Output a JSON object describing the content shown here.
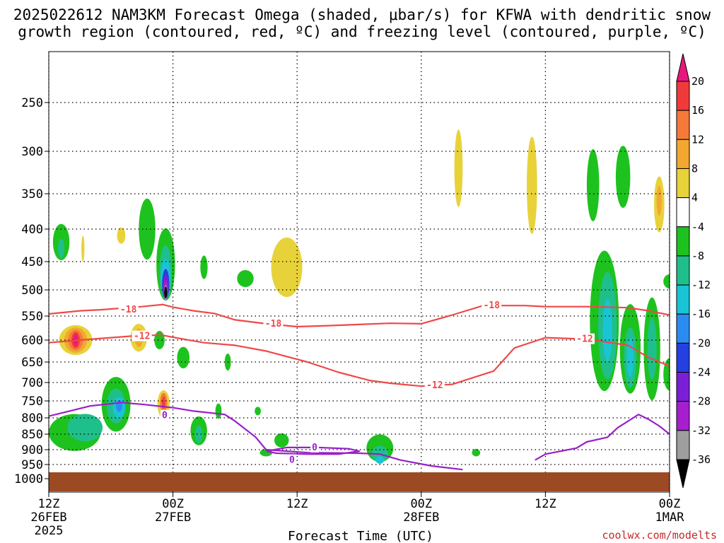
{
  "chart_data": {
    "type": "heatmap",
    "title_line1": "2025022612 NAM3KM Forecast Omega (shaded, μbar/s) for KFWA with dendritic snow",
    "title_line2": "growth region (contoured, red, ºC) and freezing level (contoured, purple, ºC)",
    "xlabel": "Forecast Time (UTC)",
    "credit": "coolwx.com/modelts",
    "x_ticks": [
      {
        "line1": "12Z",
        "line2": "26FEB",
        "line3": "2025",
        "hour": 0
      },
      {
        "line1": "00Z",
        "line2": "27FEB",
        "line3": "",
        "hour": 12
      },
      {
        "line1": "12Z",
        "line2": "",
        "line3": "",
        "hour": 24
      },
      {
        "line1": "00Z",
        "line2": "28FEB",
        "line3": "",
        "hour": 36
      },
      {
        "line1": "12Z",
        "line2": "",
        "line3": "",
        "hour": 48
      },
      {
        "line1": "00Z",
        "line2": "1MAR",
        "line3": "",
        "hour": 60
      }
    ],
    "y_ticks": [
      "250",
      "300",
      "350",
      "400",
      "450",
      "500",
      "550",
      "600",
      "650",
      "700",
      "750",
      "800",
      "850",
      "900",
      "950",
      "1000"
    ],
    "y_levels": [
      250,
      300,
      350,
      400,
      450,
      500,
      550,
      600,
      650,
      700,
      750,
      800,
      850,
      900,
      950,
      1000
    ],
    "colorbar": {
      "labels": [
        "20",
        "16",
        "12",
        "8",
        "4",
        "-4",
        "-8",
        "-12",
        "-16",
        "-20",
        "-24",
        "-28",
        "-32",
        "-36"
      ],
      "colors": [
        "#e8177e",
        "#f03a3a",
        "#f57a3a",
        "#f2a830",
        "#e8d23a",
        "#ffffff",
        "#1ec21e",
        "#1fbf8c",
        "#19c4d4",
        "#2a8cf0",
        "#2440e0",
        "#7a1fd6",
        "#a51fcf",
        "#9e9e9e",
        "#000000"
      ]
    },
    "contour_labels": {
      "dgz_cold": "-18",
      "dgz_warm": "-12",
      "freezing": "0"
    },
    "series": [
      {
        "name": "-18",
        "color": "#f04848",
        "points": [
          [
            0,
            546
          ],
          [
            3,
            540
          ],
          [
            5,
            538
          ],
          [
            9,
            532
          ],
          [
            11,
            528
          ],
          [
            12,
            533
          ],
          [
            14,
            540
          ],
          [
            16,
            545
          ],
          [
            18,
            558
          ],
          [
            21,
            566
          ],
          [
            24,
            572
          ],
          [
            27,
            570
          ],
          [
            33,
            565
          ],
          [
            36,
            566
          ],
          [
            39,
            548
          ],
          [
            42,
            530
          ],
          [
            46,
            530
          ],
          [
            48,
            532
          ],
          [
            52,
            532
          ],
          [
            56,
            534
          ],
          [
            58,
            540
          ],
          [
            60,
            548
          ]
        ]
      },
      {
        "name": "-12",
        "color": "#f04848",
        "points": [
          [
            0,
            606
          ],
          [
            3,
            600
          ],
          [
            6,
            595
          ],
          [
            9,
            590
          ],
          [
            11,
            590
          ],
          [
            13,
            598
          ],
          [
            15,
            606
          ],
          [
            18,
            612
          ],
          [
            21,
            625
          ],
          [
            25,
            650
          ],
          [
            28,
            675
          ],
          [
            31,
            695
          ],
          [
            33,
            702
          ],
          [
            36,
            710
          ],
          [
            39,
            705
          ],
          [
            43,
            672
          ],
          [
            45,
            618
          ],
          [
            48,
            595
          ],
          [
            52,
            598
          ],
          [
            56,
            612
          ],
          [
            58,
            640
          ],
          [
            60,
            660
          ]
        ]
      },
      {
        "name": "0",
        "color": "#9a20c8",
        "points": [
          [
            0,
            795
          ],
          [
            2,
            780
          ],
          [
            4,
            765
          ],
          [
            7,
            755
          ],
          [
            9,
            760
          ],
          [
            12,
            770
          ],
          [
            14,
            780
          ],
          [
            17,
            790
          ],
          [
            18,
            810
          ],
          [
            20,
            860
          ],
          [
            21,
            900
          ],
          [
            25,
            910
          ],
          [
            30,
            912
          ],
          [
            32,
            915
          ],
          [
            34,
            935
          ],
          [
            37,
            955
          ],
          [
            40,
            968
          ]
        ]
      },
      {
        "name": "0-loop",
        "color": "#9a20c8",
        "points": [
          [
            21,
            905
          ],
          [
            23,
            893
          ],
          [
            26,
            893
          ],
          [
            29,
            897
          ],
          [
            30,
            905
          ],
          [
            28,
            915
          ],
          [
            25,
            915
          ],
          [
            22,
            912
          ],
          [
            21,
            905
          ]
        ]
      },
      {
        "name": "0-east",
        "color": "#9a20c8",
        "points": [
          [
            47,
            935
          ],
          [
            48,
            915
          ],
          [
            51,
            895
          ],
          [
            52,
            875
          ],
          [
            54,
            860
          ],
          [
            55,
            830
          ],
          [
            56,
            810
          ],
          [
            57,
            790
          ],
          [
            58,
            805
          ],
          [
            59,
            825
          ],
          [
            60,
            850
          ]
        ]
      }
    ],
    "shaded_blobs": [
      {
        "h": 1.2,
        "p": 420,
        "rx": 0.8,
        "ry": 55,
        "c": "#1ec21e"
      },
      {
        "h": 1.2,
        "p": 430,
        "rx": 0.3,
        "ry": 30,
        "c": "#1fbf8c"
      },
      {
        "h": 3.3,
        "p": 430,
        "rx": 0.15,
        "ry": 40,
        "c": "#e8d23a"
      },
      {
        "h": 7.0,
        "p": 410,
        "rx": 0.4,
        "ry": 25,
        "c": "#e8d23a"
      },
      {
        "h": 9.5,
        "p": 400,
        "rx": 0.8,
        "ry": 90,
        "c": "#1ec21e"
      },
      {
        "h": 11.3,
        "p": 455,
        "rx": 0.9,
        "ry": 120,
        "c": "#1ec21e"
      },
      {
        "h": 11.3,
        "p": 470,
        "rx": 0.6,
        "ry": 95,
        "c": "#1fbf8c"
      },
      {
        "h": 11.3,
        "p": 480,
        "rx": 0.45,
        "ry": 70,
        "c": "#19c4d4"
      },
      {
        "h": 11.3,
        "p": 490,
        "rx": 0.35,
        "ry": 55,
        "c": "#2440e0"
      },
      {
        "h": 11.3,
        "p": 495,
        "rx": 0.28,
        "ry": 45,
        "c": "#7a1fd6"
      },
      {
        "h": 11.3,
        "p": 500,
        "rx": 0.2,
        "ry": 35,
        "c": "#a51fcf"
      },
      {
        "h": 11.3,
        "p": 505,
        "rx": 0.14,
        "ry": 28,
        "c": "#9e9e9e"
      },
      {
        "h": 11.3,
        "p": 505,
        "rx": 0.09,
        "ry": 22,
        "c": "#000000"
      },
      {
        "h": 15.0,
        "p": 460,
        "rx": 0.35,
        "ry": 40,
        "c": "#1ec21e"
      },
      {
        "h": 19.0,
        "p": 480,
        "rx": 0.8,
        "ry": 30,
        "c": "#1ec21e"
      },
      {
        "h": 23.0,
        "p": 460,
        "rx": 1.5,
        "ry": 100,
        "c": "#e8d23a"
      },
      {
        "h": 2.6,
        "p": 600,
        "rx": 1.6,
        "ry": 65,
        "c": "#e8d23a"
      },
      {
        "h": 2.6,
        "p": 600,
        "rx": 1.1,
        "ry": 55,
        "c": "#f2a830"
      },
      {
        "h": 2.6,
        "p": 600,
        "rx": 0.7,
        "ry": 45,
        "c": "#f57a3a"
      },
      {
        "h": 2.6,
        "p": 600,
        "rx": 0.4,
        "ry": 35,
        "c": "#f03a3a"
      },
      {
        "h": 2.6,
        "p": 600,
        "rx": 0.2,
        "ry": 25,
        "c": "#e8177e"
      },
      {
        "h": 8.7,
        "p": 595,
        "rx": 0.8,
        "ry": 60,
        "c": "#e8d23a"
      },
      {
        "h": 8.7,
        "p": 595,
        "rx": 0.4,
        "ry": 40,
        "c": "#f2a830"
      },
      {
        "h": 10.7,
        "p": 600,
        "rx": 0.5,
        "ry": 40,
        "c": "#1ec21e"
      },
      {
        "h": 13.0,
        "p": 640,
        "rx": 0.6,
        "ry": 50,
        "c": "#1ec21e"
      },
      {
        "h": 17.3,
        "p": 650,
        "rx": 0.3,
        "ry": 40,
        "c": "#1ec21e"
      },
      {
        "h": 2.5,
        "p": 845,
        "rx": 2.5,
        "ry": 115,
        "c": "#1ec21e"
      },
      {
        "h": 3.5,
        "p": 830,
        "rx": 1.7,
        "ry": 85,
        "c": "#1fbf8c"
      },
      {
        "h": 6.5,
        "p": 760,
        "rx": 1.4,
        "ry": 155,
        "c": "#1ec21e"
      },
      {
        "h": 6.5,
        "p": 765,
        "rx": 0.9,
        "ry": 100,
        "c": "#1fbf8c"
      },
      {
        "h": 6.8,
        "p": 770,
        "rx": 0.6,
        "ry": 60,
        "c": "#19c4d4"
      },
      {
        "h": 6.8,
        "p": 765,
        "rx": 0.3,
        "ry": 35,
        "c": "#2a8cf0"
      },
      {
        "h": 11.1,
        "p": 760,
        "rx": 0.6,
        "ry": 80,
        "c": "#e8d23a"
      },
      {
        "h": 11.1,
        "p": 755,
        "rx": 0.35,
        "ry": 55,
        "c": "#f57a3a"
      },
      {
        "h": 11.1,
        "p": 755,
        "rx": 0.15,
        "ry": 35,
        "c": "#f03a3a"
      },
      {
        "h": 14.5,
        "p": 840,
        "rx": 0.8,
        "ry": 90,
        "c": "#1ec21e"
      },
      {
        "h": 14.5,
        "p": 850,
        "rx": 0.35,
        "ry": 55,
        "c": "#1fbf8c"
      },
      {
        "h": 16.4,
        "p": 780,
        "rx": 0.3,
        "ry": 45,
        "c": "#1ec21e"
      },
      {
        "h": 20.2,
        "p": 780,
        "rx": 0.3,
        "ry": 25,
        "c": "#1ec21e"
      },
      {
        "h": 22.5,
        "p": 870,
        "rx": 0.7,
        "ry": 45,
        "c": "#1ec21e"
      },
      {
        "h": 21.0,
        "p": 910,
        "rx": 0.6,
        "ry": 25,
        "c": "#1ec21e"
      },
      {
        "h": 32.0,
        "p": 895,
        "rx": 1.3,
        "ry": 90,
        "c": "#1ec21e"
      },
      {
        "h": 32.0,
        "p": 915,
        "rx": 0.8,
        "ry": 55,
        "c": "#1fbf8c"
      },
      {
        "h": 32.0,
        "p": 935,
        "rx": 0.4,
        "ry": 25,
        "c": "#19c4d4"
      },
      {
        "h": 41.3,
        "p": 910,
        "rx": 0.4,
        "ry": 25,
        "c": "#1ec21e"
      },
      {
        "h": 39.6,
        "p": 320,
        "rx": 0.4,
        "ry": 90,
        "c": "#e8d23a"
      },
      {
        "h": 46.7,
        "p": 340,
        "rx": 0.5,
        "ry": 120,
        "c": "#e8d23a"
      },
      {
        "h": 52.6,
        "p": 340,
        "rx": 0.6,
        "ry": 90,
        "c": "#1ec21e"
      },
      {
        "h": 55.5,
        "p": 330,
        "rx": 0.7,
        "ry": 75,
        "c": "#1ec21e"
      },
      {
        "h": 53.7,
        "p": 560,
        "rx": 1.4,
        "ry": 280,
        "c": "#1ec21e"
      },
      {
        "h": 54.0,
        "p": 570,
        "rx": 0.9,
        "ry": 220,
        "c": "#1fbf8c"
      },
      {
        "h": 54.0,
        "p": 580,
        "rx": 0.45,
        "ry": 130,
        "c": "#19c4d4"
      },
      {
        "h": 56.2,
        "p": 620,
        "rx": 1.0,
        "ry": 200,
        "c": "#1ec21e"
      },
      {
        "h": 56.2,
        "p": 640,
        "rx": 0.6,
        "ry": 140,
        "c": "#1fbf8c"
      },
      {
        "h": 56.2,
        "p": 640,
        "rx": 0.35,
        "ry": 90,
        "c": "#19c4d4"
      },
      {
        "h": 58.3,
        "p": 620,
        "rx": 0.8,
        "ry": 230,
        "c": "#1ec21e"
      },
      {
        "h": 58.3,
        "p": 620,
        "rx": 0.45,
        "ry": 140,
        "c": "#1fbf8c"
      },
      {
        "h": 59.0,
        "p": 365,
        "rx": 0.5,
        "ry": 75,
        "c": "#e8d23a"
      },
      {
        "h": 59.0,
        "p": 360,
        "rx": 0.25,
        "ry": 40,
        "c": "#f2a830"
      },
      {
        "h": 60.0,
        "p": 485,
        "rx": 0.6,
        "ry": 25,
        "c": "#1ec21e"
      },
      {
        "h": 60.0,
        "p": 680,
        "rx": 0.6,
        "ry": 80,
        "c": "#1ec21e"
      }
    ]
  }
}
